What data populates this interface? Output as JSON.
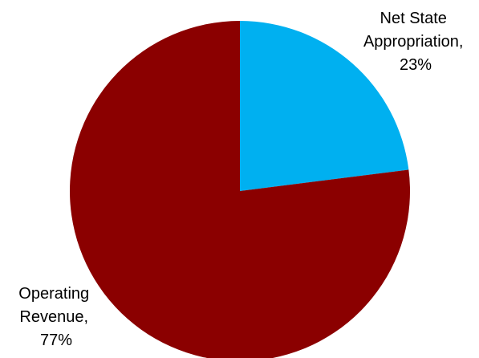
{
  "chart_data": {
    "type": "pie",
    "title": "",
    "start_angle_deg": 0,
    "direction": "clockwise",
    "slices": [
      {
        "label_lines": [
          "Net State",
          "Appropriation,",
          "23%"
        ],
        "value": 23,
        "color": "#00b0f0"
      },
      {
        "label_lines": [
          "Operating",
          "Revenue,",
          "77%"
        ],
        "value": 77,
        "color": "#8b0000"
      }
    ],
    "legend": "none"
  }
}
